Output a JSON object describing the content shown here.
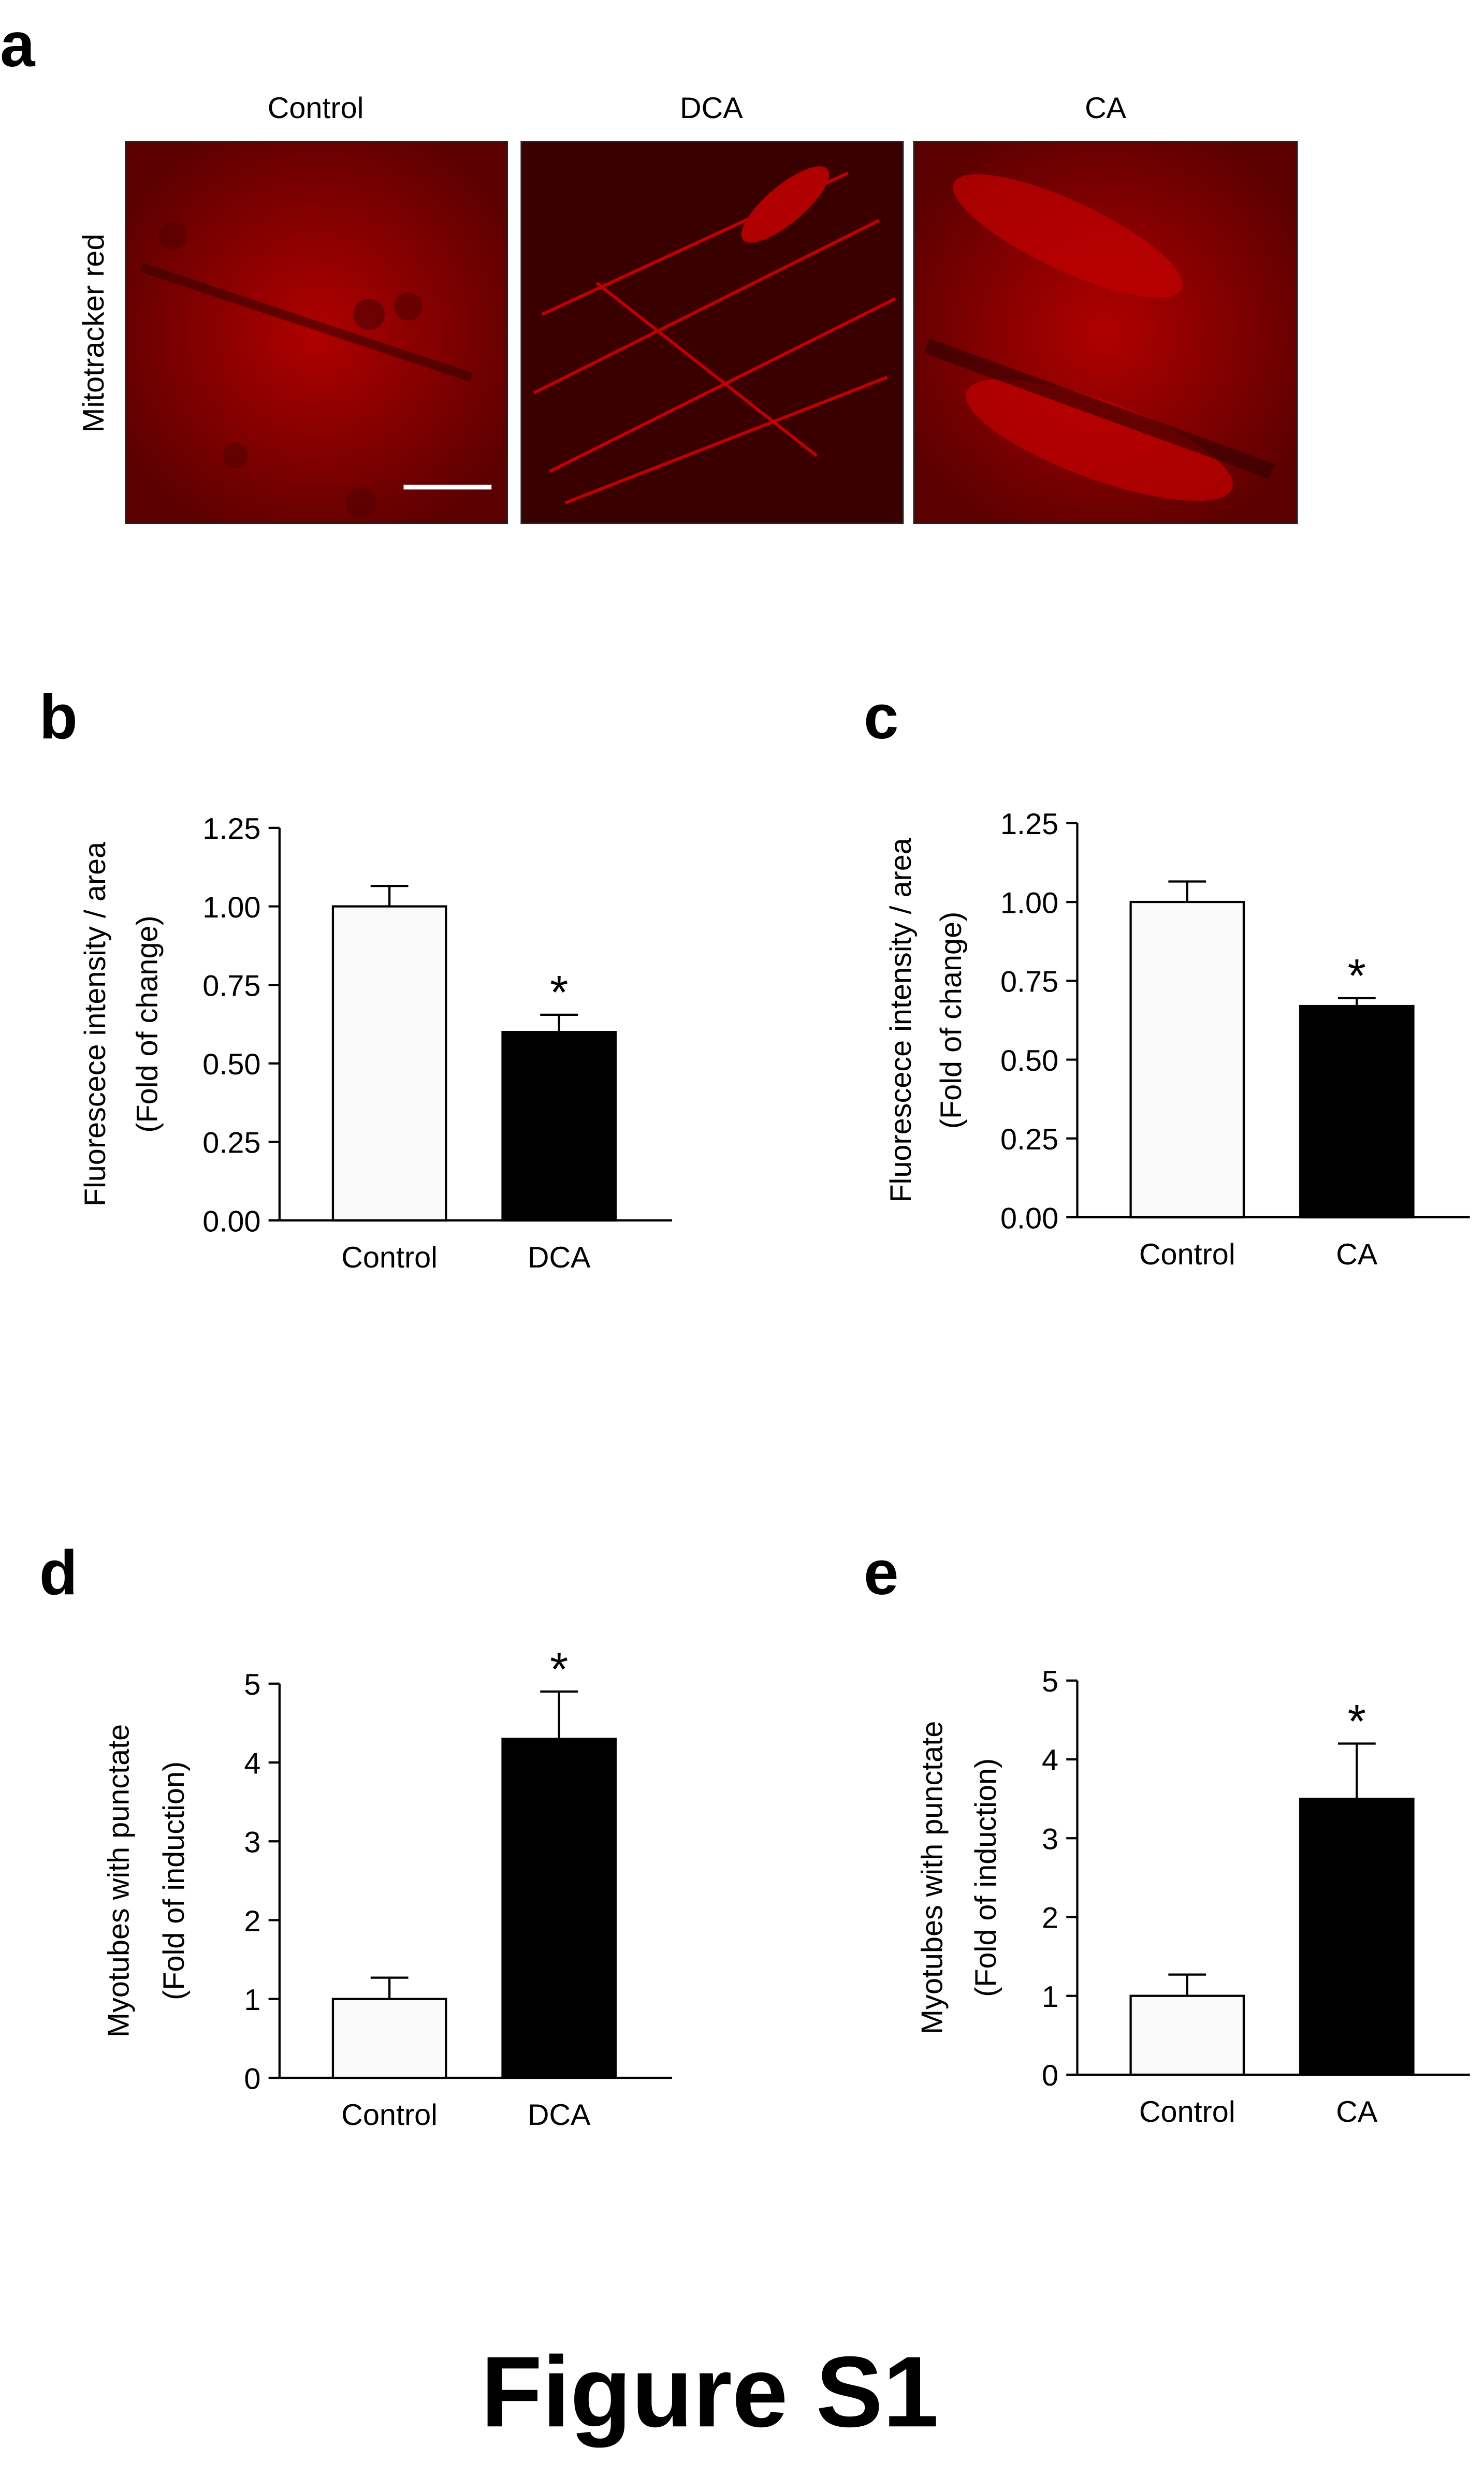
{
  "panel_a": {
    "label": "a",
    "columns": [
      "Control",
      "DCA",
      "CA"
    ],
    "row_label": "Mitotracker red"
  },
  "figure_title": "Figure S1",
  "chart_data": [
    {
      "type": "bar",
      "panel": "b",
      "ylabel": [
        "Fluorescece intensity / area",
        "(Fold of change)"
      ],
      "categories": [
        "Control",
        "DCA"
      ],
      "values": [
        1.0,
        0.6
      ],
      "errors": [
        0.065,
        0.055
      ],
      "colors": [
        "#fafafa",
        "#000000"
      ],
      "annotations": [
        null,
        "*"
      ],
      "ylim": [
        0,
        1.25
      ],
      "yticks": [
        {
          "value": 0,
          "label": "0.00"
        },
        {
          "value": 0.25,
          "label": "0.25"
        },
        {
          "value": 0.5,
          "label": "0.50"
        },
        {
          "value": 0.75,
          "label": "0.75"
        },
        {
          "value": 1,
          "label": "1.00"
        },
        {
          "value": 1.25,
          "label": "1.25"
        }
      ]
    },
    {
      "type": "bar",
      "panel": "c",
      "ylabel": [
        "Fluorescece intensity / area",
        "(Fold of change)"
      ],
      "categories": [
        "Control",
        "CA"
      ],
      "values": [
        1.0,
        0.67
      ],
      "errors": [
        0.065,
        0.025
      ],
      "colors": [
        "#fafafa",
        "#000000"
      ],
      "annotations": [
        null,
        "*"
      ],
      "ylim": [
        0,
        1.25
      ],
      "yticks": [
        {
          "value": 0,
          "label": "0.00"
        },
        {
          "value": 0.25,
          "label": "0.25"
        },
        {
          "value": 0.5,
          "label": "0.50"
        },
        {
          "value": 0.75,
          "label": "0.75"
        },
        {
          "value": 1,
          "label": "1.00"
        },
        {
          "value": 1.25,
          "label": "1.25"
        }
      ]
    },
    {
      "type": "bar",
      "panel": "d",
      "ylabel": [
        "Myotubes with punctate",
        "(Fold of induction)"
      ],
      "categories": [
        "Control",
        "DCA"
      ],
      "values": [
        1.0,
        4.3
      ],
      "errors": [
        0.27,
        0.6
      ],
      "colors": [
        "#fafafa",
        "#000000"
      ],
      "annotations": [
        null,
        "*"
      ],
      "ylim": [
        0,
        5
      ],
      "yticks": [
        0,
        1,
        2,
        3,
        4,
        5
      ]
    },
    {
      "type": "bar",
      "panel": "e",
      "ylabel": [
        "Myotubes with punctate",
        "(Fold of induction)"
      ],
      "categories": [
        "Control",
        "CA"
      ],
      "values": [
        1.0,
        3.5
      ],
      "errors": [
        0.27,
        0.7
      ],
      "colors": [
        "#fafafa",
        "#000000"
      ],
      "annotations": [
        null,
        "*"
      ],
      "ylim": [
        0,
        5
      ],
      "yticks": [
        0,
        1,
        2,
        3,
        4,
        5
      ]
    }
  ]
}
